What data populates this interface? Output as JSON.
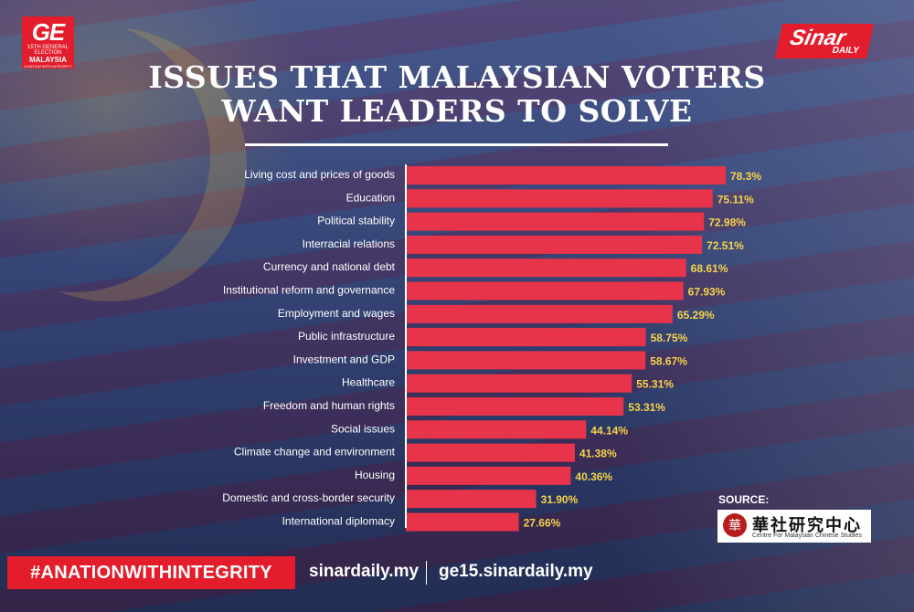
{
  "header": {
    "ge_logo": {
      "main": "GE",
      "line1": "15TH GENERAL ELECTION",
      "line2": "MALAYSIA",
      "line3": "A NATION WITH INTEGRITY"
    },
    "sinar_logo": {
      "name": "Sinar",
      "sub": "DAILY"
    },
    "title_line1": "ISSUES THAT MALAYSIAN VOTERS",
    "title_line2": "WANT LEADERS TO SOLVE"
  },
  "colors": {
    "bar": "#e8344a",
    "value_text": "#f6d24a",
    "brand_red": "#e31d2b"
  },
  "chart_data": {
    "type": "bar",
    "orientation": "horizontal",
    "categories": [
      "Living cost and prices of goods",
      "Education",
      "Political stability",
      "Interracial relations",
      "Currency and national debt",
      "Institutional reform and governance",
      "Employment and wages",
      "Public infrastructure",
      "Investment and GDP",
      "Healthcare",
      "Freedom and human rights",
      "Social issues",
      "Climate change and environment",
      "Housing",
      "Domestic and cross-border security",
      "International diplomacy"
    ],
    "values": [
      78.3,
      75.11,
      72.98,
      72.51,
      68.61,
      67.93,
      65.29,
      58.75,
      58.67,
      55.31,
      53.31,
      44.14,
      41.38,
      40.36,
      31.9,
      27.66
    ],
    "value_labels": [
      "78.3%",
      "75.11%",
      "72.98%",
      "72.51%",
      "68.61%",
      "67.93%",
      "65.29%",
      "58.75%",
      "58.67%",
      "55.31%",
      "53.31%",
      "44.14%",
      "41.38%",
      "40.36%",
      "31.90%",
      "27.66%"
    ],
    "xlim": [
      0,
      100
    ],
    "grid": false,
    "legend": "none"
  },
  "source": {
    "label": "SOURCE:",
    "name_cn": "華社研究中心",
    "name_en": "Centre For Malaysian Chinese Studies",
    "seal": "華"
  },
  "footer": {
    "hashtag": "#ANATIONWITHINTEGRITY",
    "link1": "sinardaily.my",
    "link2": "ge15.sinardaily.my"
  }
}
